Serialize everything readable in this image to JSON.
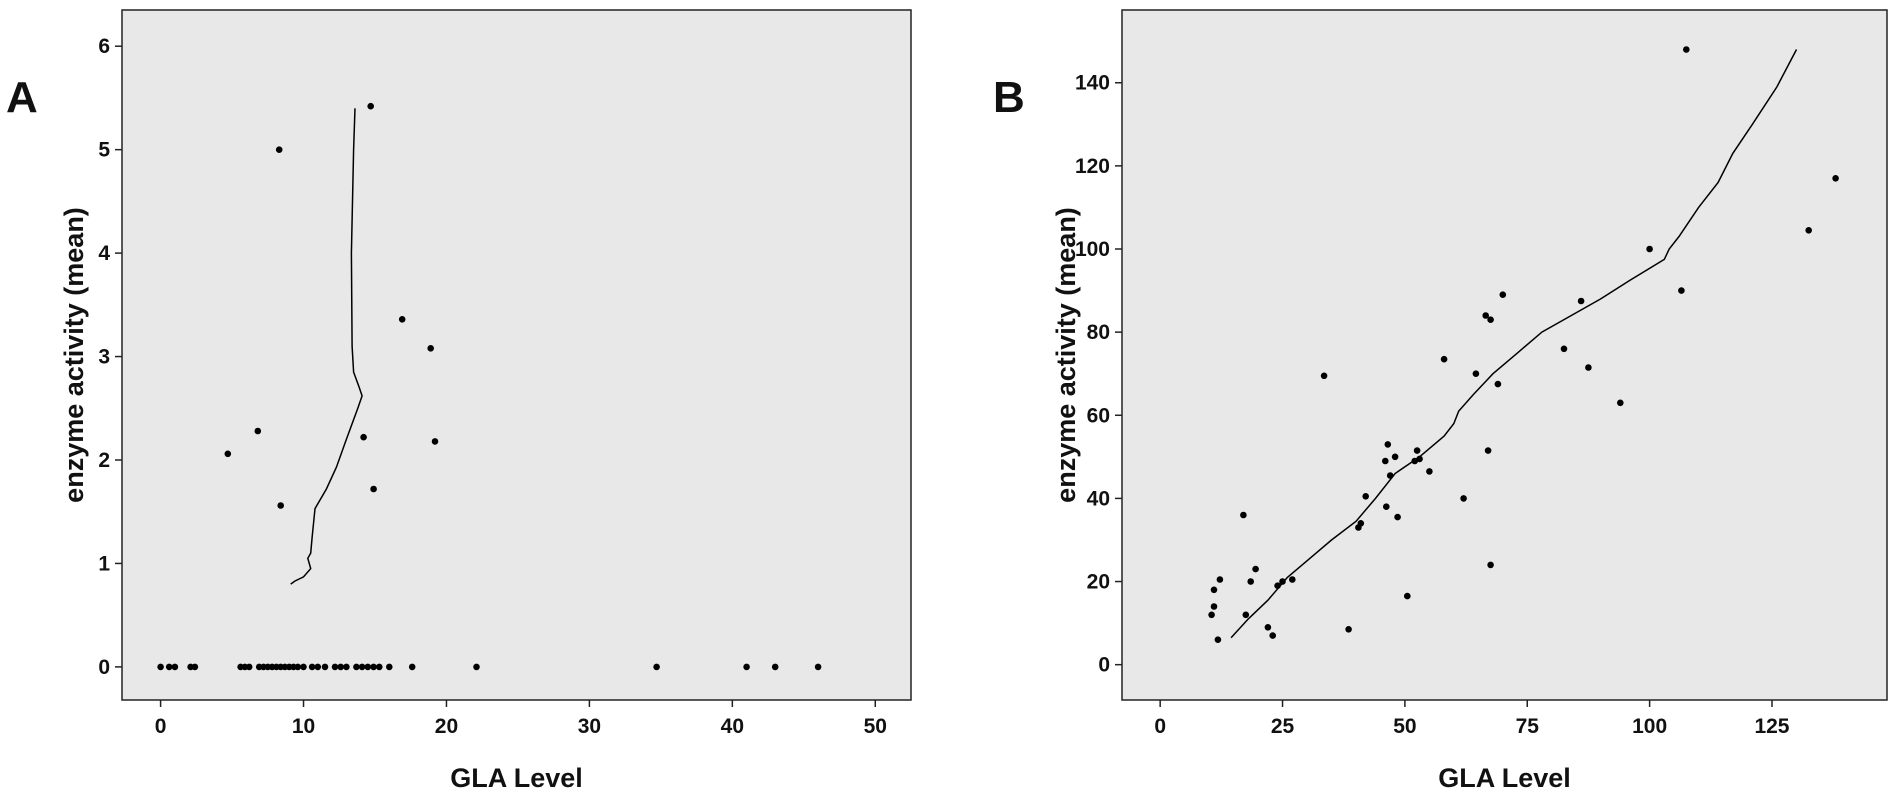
{
  "chart_data": [
    {
      "panel_label": "A",
      "type": "scatter",
      "xlabel": "GLA Level",
      "ylabel": "enzyme activity (mean)",
      "xlim": [
        -2.7,
        52.5
      ],
      "ylim": [
        -0.32,
        6.35
      ],
      "xticks": [
        0,
        10,
        20,
        30,
        40,
        50
      ],
      "yticks": [
        0,
        1,
        2,
        3,
        4,
        5,
        6
      ],
      "grid": false,
      "points": [
        [
          0.0,
          0
        ],
        [
          0.6,
          0
        ],
        [
          1.0,
          0
        ],
        [
          2.1,
          0
        ],
        [
          2.4,
          0
        ],
        [
          5.6,
          0
        ],
        [
          5.9,
          0
        ],
        [
          6.2,
          0
        ],
        [
          6.9,
          0
        ],
        [
          7.2,
          0
        ],
        [
          7.5,
          0
        ],
        [
          7.8,
          0
        ],
        [
          8.1,
          0
        ],
        [
          8.4,
          0
        ],
        [
          8.7,
          0
        ],
        [
          9.0,
          0
        ],
        [
          9.3,
          0
        ],
        [
          9.6,
          0
        ],
        [
          10.0,
          0
        ],
        [
          10.6,
          0
        ],
        [
          11.0,
          0
        ],
        [
          11.5,
          0
        ],
        [
          12.2,
          0
        ],
        [
          12.6,
          0
        ],
        [
          13.0,
          0
        ],
        [
          13.7,
          0
        ],
        [
          14.1,
          0
        ],
        [
          14.5,
          0
        ],
        [
          14.9,
          0
        ],
        [
          15.3,
          0
        ],
        [
          16.0,
          0
        ],
        [
          17.6,
          0
        ],
        [
          22.1,
          0
        ],
        [
          34.7,
          0
        ],
        [
          41.0,
          0
        ],
        [
          43.0,
          0
        ],
        [
          46.0,
          0
        ],
        [
          4.7,
          2.06
        ],
        [
          6.8,
          2.28
        ],
        [
          8.3,
          5.0
        ],
        [
          8.4,
          1.56
        ],
        [
          14.2,
          2.22
        ],
        [
          14.7,
          5.42
        ],
        [
          14.9,
          1.72
        ],
        [
          16.9,
          3.36
        ],
        [
          18.9,
          3.08
        ],
        [
          19.2,
          2.18
        ]
      ],
      "fit_line": [
        [
          9.1,
          0.8
        ],
        [
          9.4,
          0.83
        ],
        [
          10.0,
          0.87
        ],
        [
          10.5,
          0.95
        ],
        [
          10.3,
          1.05
        ],
        [
          10.5,
          1.1
        ],
        [
          10.6,
          1.25
        ],
        [
          10.8,
          1.53
        ],
        [
          11.6,
          1.72
        ],
        [
          12.3,
          1.93
        ],
        [
          13.0,
          2.2
        ],
        [
          13.8,
          2.5
        ],
        [
          14.1,
          2.62
        ],
        [
          13.9,
          2.7
        ],
        [
          13.5,
          2.85
        ],
        [
          13.4,
          3.1
        ],
        [
          13.35,
          4.0
        ],
        [
          13.5,
          5.0
        ],
        [
          13.6,
          5.4
        ]
      ]
    },
    {
      "panel_label": "B",
      "type": "scatter",
      "xlabel": "GLA Level",
      "ylabel": "enzyme activity (mean)",
      "xlim": [
        -7.8,
        148.5
      ],
      "ylim": [
        -8.5,
        157.5
      ],
      "xticks": [
        0,
        25,
        50,
        75,
        100,
        125
      ],
      "yticks": [
        0,
        20,
        40,
        60,
        80,
        100,
        120,
        140
      ],
      "grid": false,
      "points": [
        [
          10.5,
          12
        ],
        [
          11.0,
          14
        ],
        [
          11.0,
          18
        ],
        [
          11.8,
          6
        ],
        [
          12.2,
          20.5
        ],
        [
          17.0,
          36
        ],
        [
          17.5,
          12
        ],
        [
          18.5,
          20
        ],
        [
          19.5,
          23
        ],
        [
          22.0,
          9
        ],
        [
          23.0,
          7
        ],
        [
          24.0,
          19
        ],
        [
          25.0,
          20
        ],
        [
          27.0,
          20.5
        ],
        [
          33.5,
          69.5
        ],
        [
          38.5,
          8.5
        ],
        [
          40.5,
          33
        ],
        [
          41.0,
          34
        ],
        [
          42.0,
          40.5
        ],
        [
          46.0,
          49
        ],
        [
          46.2,
          38
        ],
        [
          46.5,
          53
        ],
        [
          47.0,
          45.5
        ],
        [
          48.0,
          50
        ],
        [
          48.5,
          35.5
        ],
        [
          50.5,
          16.5
        ],
        [
          52.0,
          49
        ],
        [
          52.5,
          51.5
        ],
        [
          53.0,
          49.5
        ],
        [
          55.0,
          46.5
        ],
        [
          58.0,
          73.5
        ],
        [
          62.0,
          40
        ],
        [
          64.5,
          70
        ],
        [
          66.5,
          84
        ],
        [
          67.0,
          51.5
        ],
        [
          67.5,
          83
        ],
        [
          67.5,
          24
        ],
        [
          69.0,
          67.5
        ],
        [
          70.0,
          89
        ],
        [
          82.5,
          76
        ],
        [
          86.0,
          87.5
        ],
        [
          87.5,
          71.5
        ],
        [
          94.0,
          63
        ],
        [
          100.0,
          100
        ],
        [
          106.5,
          90
        ],
        [
          107.5,
          148
        ],
        [
          132.5,
          104.5
        ],
        [
          138.0,
          117
        ]
      ],
      "fit_line": [
        [
          14.5,
          6.5
        ],
        [
          18,
          11
        ],
        [
          22,
          15.5
        ],
        [
          26,
          21
        ],
        [
          30,
          25
        ],
        [
          35,
          30
        ],
        [
          40,
          34.5
        ],
        [
          44,
          40
        ],
        [
          48,
          46
        ],
        [
          53,
          50
        ],
        [
          58,
          55
        ],
        [
          60,
          58
        ],
        [
          61,
          61
        ],
        [
          64,
          65
        ],
        [
          68,
          70
        ],
        [
          73,
          75
        ],
        [
          78,
          80
        ],
        [
          84,
          84
        ],
        [
          90,
          88
        ],
        [
          96,
          92.5
        ],
        [
          103,
          97.5
        ],
        [
          104,
          100
        ],
        [
          106,
          103
        ],
        [
          110,
          110
        ],
        [
          114,
          116
        ],
        [
          117,
          123
        ],
        [
          121,
          130
        ],
        [
          126,
          139
        ],
        [
          130,
          148
        ]
      ]
    }
  ]
}
